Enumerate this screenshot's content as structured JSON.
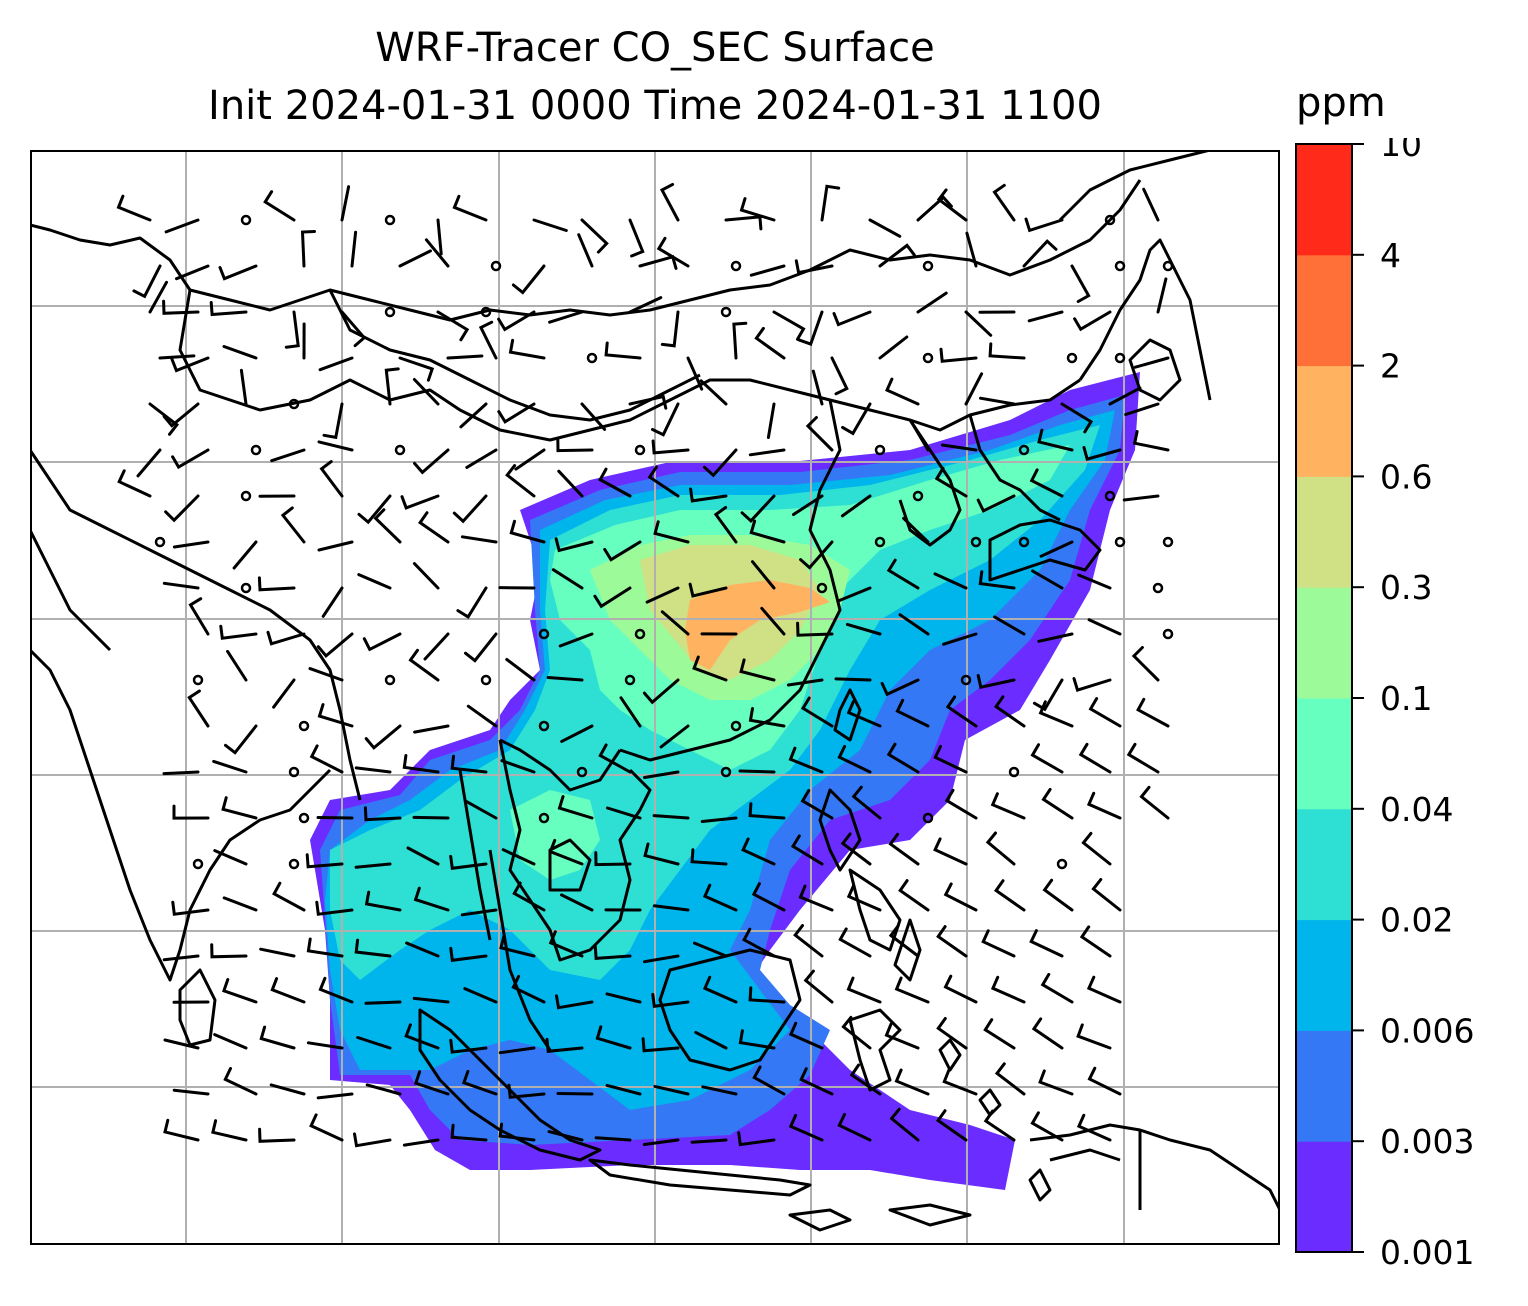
{
  "title": {
    "line1": "WRF-Tracer CO_SEC Surface",
    "line2": "Init 2024-01-31 0000 Time 2024-01-31 1100"
  },
  "colorbar": {
    "unit": "ppm",
    "levels": [
      "0.001",
      "0.003",
      "0.006",
      "0.02",
      "0.04",
      "0.1",
      "0.3",
      "0.6",
      "2",
      "4",
      "10"
    ],
    "colors": [
      "#6a2cff",
      "#3478f6",
      "#00b4ec",
      "#2ee0d4",
      "#66ffc0",
      "#9dfa98",
      "#cfe085",
      "#ffb360",
      "#ff7038",
      "#ff2a1a"
    ]
  },
  "map": {
    "region": "East and Southeast Asia",
    "tracer_field_colors": {
      "lowest": "#6a2cff",
      "low": "#3478f6",
      "mid_low": "#00b4ec",
      "mid": "#2ee0d4",
      "mid_high": "#66ffc0",
      "high": "#9dfa98",
      "higher": "#cfe085",
      "peak": "#ffb360"
    },
    "gridline_color": "#b0b0b0",
    "coastline_color": "#000000"
  }
}
